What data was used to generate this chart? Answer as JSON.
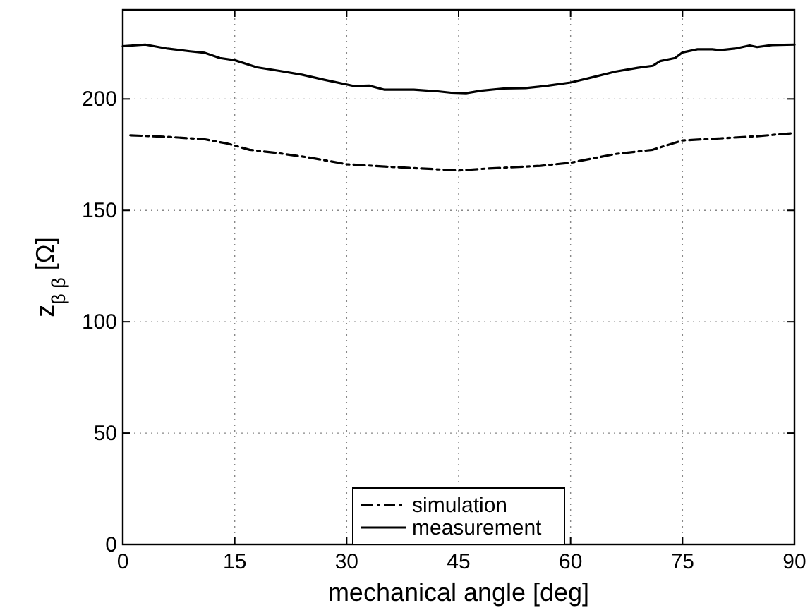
{
  "chart_data": {
    "type": "line",
    "xlabel": "mechanical angle [deg]",
    "ylabel": "z$_{β β}$ [Ω]",
    "xlim": [
      0,
      90
    ],
    "xticks": [
      0,
      15,
      30,
      45,
      60,
      75,
      90
    ],
    "ylim": [
      0,
      240
    ],
    "yticks": [
      0,
      50,
      100,
      150,
      200
    ],
    "grid": true,
    "legend": "bottom",
    "series": [
      {
        "name": "simulation",
        "color": "#000000",
        "line_style": "dashdot",
        "x": [
          1,
          6,
          11,
          14,
          17,
          21,
          25,
          30,
          36,
          40,
          45,
          49,
          56,
          60,
          66,
          71,
          75,
          80,
          85,
          90
        ],
        "values": [
          183.7,
          183,
          181.9,
          180,
          177.2,
          175.6,
          173.7,
          170.7,
          169.5,
          168.8,
          167.9,
          168.8,
          170,
          171.4,
          175.3,
          177.2,
          181.4,
          182.3,
          183.3,
          184.7
        ]
      },
      {
        "name": "measurement",
        "color": "#000000",
        "line_style": "solid",
        "x": [
          0,
          3,
          6,
          9,
          11,
          13,
          15,
          18,
          21,
          24,
          27,
          31,
          33,
          35,
          39,
          42,
          44,
          46,
          48,
          51,
          54,
          57,
          60,
          63,
          66,
          69,
          71,
          72,
          74,
          75,
          77,
          79,
          80,
          82,
          84,
          85,
          87,
          90
        ],
        "values": [
          223.7,
          224.4,
          222.6,
          221.4,
          220.7,
          218.4,
          217.4,
          214.2,
          212.6,
          210.9,
          208.6,
          205.8,
          206,
          204.2,
          204.2,
          203.5,
          202.8,
          202.6,
          203.7,
          204.7,
          204.9,
          206,
          207.4,
          209.8,
          212.3,
          214,
          214.9,
          217,
          218.4,
          220.9,
          222.3,
          222.3,
          221.9,
          222.6,
          224,
          223.3,
          224.2,
          224.4
        ]
      }
    ]
  }
}
